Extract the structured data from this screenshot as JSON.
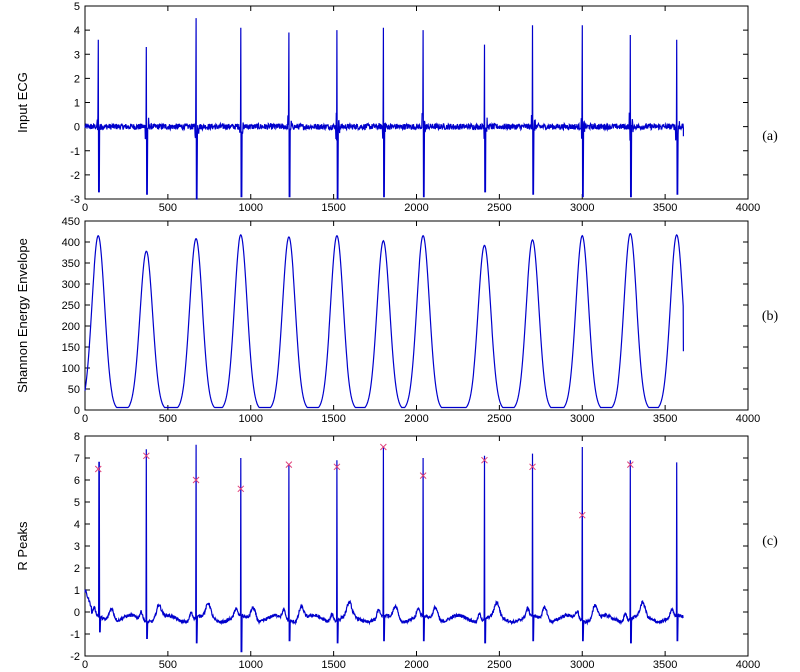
{
  "chart_data": [
    {
      "type": "line",
      "panel_label": "(a)",
      "ylabel": "Input ECG",
      "xlim": [
        0,
        4000
      ],
      "ylim": [
        -3,
        5
      ],
      "xticks": [
        0,
        500,
        1000,
        1500,
        2000,
        2500,
        3000,
        3500,
        4000
      ],
      "yticks": [
        -3,
        -2,
        -1,
        0,
        1,
        2,
        3,
        4,
        5
      ],
      "grid": false,
      "line_color": "#0000cc",
      "series": [
        {
          "values_description_free": true,
          "peaks": [
            {
              "x": 80,
              "max": 3.6,
              "min": -2.7
            },
            {
              "x": 370,
              "max": 3.3,
              "min": -2.8
            },
            {
              "x": 670,
              "max": 4.5,
              "min": -3.0
            },
            {
              "x": 940,
              "max": 4.1,
              "min": -2.9
            },
            {
              "x": 1230,
              "max": 3.9,
              "min": -2.9
            },
            {
              "x": 1520,
              "max": 4.0,
              "min": -3.0
            },
            {
              "x": 1800,
              "max": 4.1,
              "min": -2.9
            },
            {
              "x": 2040,
              "max": 4.0,
              "min": -2.9
            },
            {
              "x": 2410,
              "max": 3.4,
              "min": -2.7
            },
            {
              "x": 2700,
              "max": 4.2,
              "min": -2.8
            },
            {
              "x": 3000,
              "max": 4.2,
              "min": -2.9
            },
            {
              "x": 3290,
              "max": 3.8,
              "min": -2.9
            },
            {
              "x": 3570,
              "max": 3.6,
              "min": -2.8
            }
          ],
          "x_end": 3610,
          "end_value": -0.4
        }
      ]
    },
    {
      "type": "line",
      "panel_label": "(b)",
      "ylabel": "Shannon Energy Envelope",
      "xlim": [
        0,
        4000
      ],
      "ylim": [
        0,
        450
      ],
      "xticks": [
        0,
        500,
        1000,
        1500,
        2000,
        2500,
        3000,
        3500,
        4000
      ],
      "yticks": [
        0,
        50,
        100,
        150,
        200,
        250,
        300,
        350,
        400,
        450
      ],
      "grid": false,
      "line_color": "#0000cc",
      "series": [
        {
          "peaks": [
            {
              "x": 80,
              "y": 415
            },
            {
              "x": 370,
              "y": 378
            },
            {
              "x": 670,
              "y": 408
            },
            {
              "x": 940,
              "y": 417
            },
            {
              "x": 1230,
              "y": 412
            },
            {
              "x": 1520,
              "y": 415
            },
            {
              "x": 1800,
              "y": 403
            },
            {
              "x": 2040,
              "y": 415
            },
            {
              "x": 2410,
              "y": 392
            },
            {
              "x": 2700,
              "y": 405
            },
            {
              "x": 3000,
              "y": 415
            },
            {
              "x": 3290,
              "y": 420
            },
            {
              "x": 3570,
              "y": 417
            }
          ],
          "x_end": 3610,
          "end_value": 140
        }
      ]
    },
    {
      "type": "line",
      "panel_label": "(c)",
      "ylabel": "R Peaks",
      "xlim": [
        0,
        4000
      ],
      "ylim": [
        -2,
        8
      ],
      "xticks": [
        0,
        500,
        1000,
        1500,
        2000,
        2500,
        3000,
        3500,
        4000
      ],
      "yticks": [
        -2,
        -1,
        0,
        1,
        2,
        3,
        4,
        5,
        6,
        7,
        8
      ],
      "grid": false,
      "line_color": "#0000cc",
      "marker_color": "#e0407a",
      "series": [
        {
          "peaks": [
            {
              "x": 85,
              "max": 6.8,
              "min": -0.9
            },
            {
              "x": 370,
              "max": 7.4,
              "min": -1.2
            },
            {
              "x": 670,
              "max": 7.6,
              "min": -1.4
            },
            {
              "x": 940,
              "max": 7.0,
              "min": -1.8
            },
            {
              "x": 1230,
              "max": 6.7,
              "min": -1.3
            },
            {
              "x": 1520,
              "max": 6.9,
              "min": -1.4
            },
            {
              "x": 1800,
              "max": 7.5,
              "min": -1.3
            },
            {
              "x": 2040,
              "max": 7.0,
              "min": -1.3
            },
            {
              "x": 2410,
              "max": 7.1,
              "min": -1.4
            },
            {
              "x": 2700,
              "max": 7.2,
              "min": -1.3
            },
            {
              "x": 3000,
              "max": 7.5,
              "min": -1.3
            },
            {
              "x": 3290,
              "max": 6.9,
              "min": -1.4
            },
            {
              "x": 3570,
              "max": 6.8,
              "min": -1.3
            }
          ],
          "x_end": 3610,
          "start_value": 1.0
        }
      ],
      "detected_r_peaks": [
        {
          "x": 80,
          "y": 6.5
        },
        {
          "x": 370,
          "y": 7.1
        },
        {
          "x": 670,
          "y": 6.0
        },
        {
          "x": 940,
          "y": 5.6
        },
        {
          "x": 1230,
          "y": 6.7
        },
        {
          "x": 1520,
          "y": 6.6
        },
        {
          "x": 1800,
          "y": 7.5
        },
        {
          "x": 2040,
          "y": 6.2
        },
        {
          "x": 2410,
          "y": 6.9
        },
        {
          "x": 2700,
          "y": 6.6
        },
        {
          "x": 3000,
          "y": 4.4
        },
        {
          "x": 3290,
          "y": 6.7
        }
      ]
    }
  ]
}
